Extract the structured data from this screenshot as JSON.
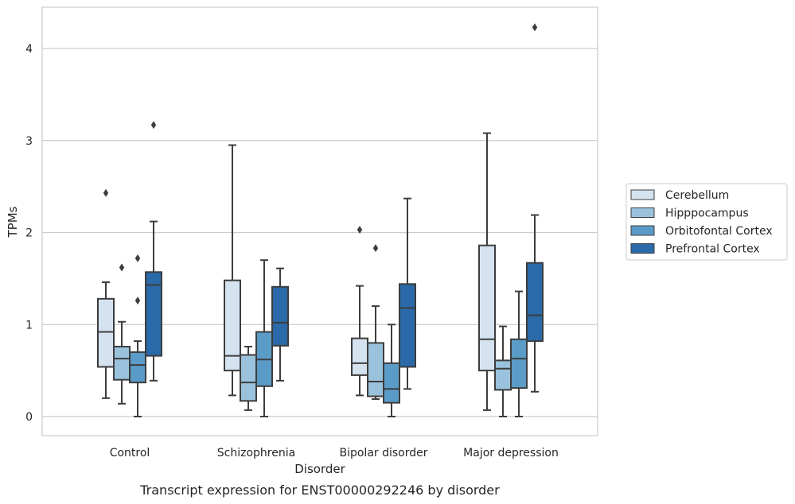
{
  "chart_data": {
    "type": "box",
    "xlabel": "Disorder",
    "ylabel": "TPMs",
    "caption": "Transcript expression for ENST00000292246 by disorder",
    "ylim": [
      -0.2,
      4.45
    ],
    "yticks": [
      0,
      1,
      2,
      3,
      4
    ],
    "grid": "horizontal",
    "legend_position": "right",
    "categories": [
      "Control",
      "Schizophrenia",
      "Bipolar disorder",
      "Major depression"
    ],
    "series": [
      {
        "name": "Cerebellum",
        "color": "#d5e3f0",
        "boxes": [
          {
            "whisker_low": 0.2,
            "q1": 0.54,
            "median": 0.92,
            "q3": 1.28,
            "whisker_high": 1.46,
            "outliers": [
              2.43
            ]
          },
          {
            "whisker_low": 0.23,
            "q1": 0.5,
            "median": 0.66,
            "q3": 1.48,
            "whisker_high": 2.95,
            "outliers": []
          },
          {
            "whisker_low": 0.23,
            "q1": 0.45,
            "median": 0.58,
            "q3": 0.85,
            "whisker_high": 1.42,
            "outliers": [
              2.03
            ]
          },
          {
            "whisker_low": 0.07,
            "q1": 0.5,
            "median": 0.84,
            "q3": 1.86,
            "whisker_high": 3.08,
            "outliers": []
          }
        ]
      },
      {
        "name": "Hipppocampus",
        "color": "#9ac2dc",
        "boxes": [
          {
            "whisker_low": 0.14,
            "q1": 0.4,
            "median": 0.63,
            "q3": 0.76,
            "whisker_high": 1.03,
            "outliers": [
              1.62
            ]
          },
          {
            "whisker_low": 0.07,
            "q1": 0.17,
            "median": 0.37,
            "q3": 0.67,
            "whisker_high": 0.76,
            "outliers": []
          },
          {
            "whisker_low": 0.19,
            "q1": 0.22,
            "median": 0.38,
            "q3": 0.8,
            "whisker_high": 1.2,
            "outliers": [
              1.83
            ]
          },
          {
            "whisker_low": 0.0,
            "q1": 0.29,
            "median": 0.52,
            "q3": 0.61,
            "whisker_high": 0.98,
            "outliers": []
          }
        ]
      },
      {
        "name": "Orbitofontal Cortex",
        "color": "#5a9bc7",
        "boxes": [
          {
            "whisker_low": 0.0,
            "q1": 0.37,
            "median": 0.56,
            "q3": 0.7,
            "whisker_high": 0.82,
            "outliers": [
              1.26,
              1.72
            ]
          },
          {
            "whisker_low": 0.0,
            "q1": 0.33,
            "median": 0.62,
            "q3": 0.92,
            "whisker_high": 1.7,
            "outliers": []
          },
          {
            "whisker_low": 0.0,
            "q1": 0.15,
            "median": 0.3,
            "q3": 0.58,
            "whisker_high": 1.0,
            "outliers": []
          },
          {
            "whisker_low": 0.0,
            "q1": 0.31,
            "median": 0.63,
            "q3": 0.84,
            "whisker_high": 1.36,
            "outliers": []
          }
        ]
      },
      {
        "name": "Prefrontal Cortex",
        "color": "#2a6aa8",
        "boxes": [
          {
            "whisker_low": 0.39,
            "q1": 0.66,
            "median": 1.43,
            "q3": 1.57,
            "whisker_high": 2.12,
            "outliers": [
              3.17
            ]
          },
          {
            "whisker_low": 0.39,
            "q1": 0.77,
            "median": 1.02,
            "q3": 1.41,
            "whisker_high": 1.61,
            "outliers": []
          },
          {
            "whisker_low": 0.3,
            "q1": 0.54,
            "median": 1.18,
            "q3": 1.44,
            "whisker_high": 2.37,
            "outliers": []
          },
          {
            "whisker_low": 0.27,
            "q1": 0.82,
            "median": 1.1,
            "q3": 1.67,
            "whisker_high": 2.19,
            "outliers": [
              4.23
            ]
          }
        ]
      }
    ]
  }
}
